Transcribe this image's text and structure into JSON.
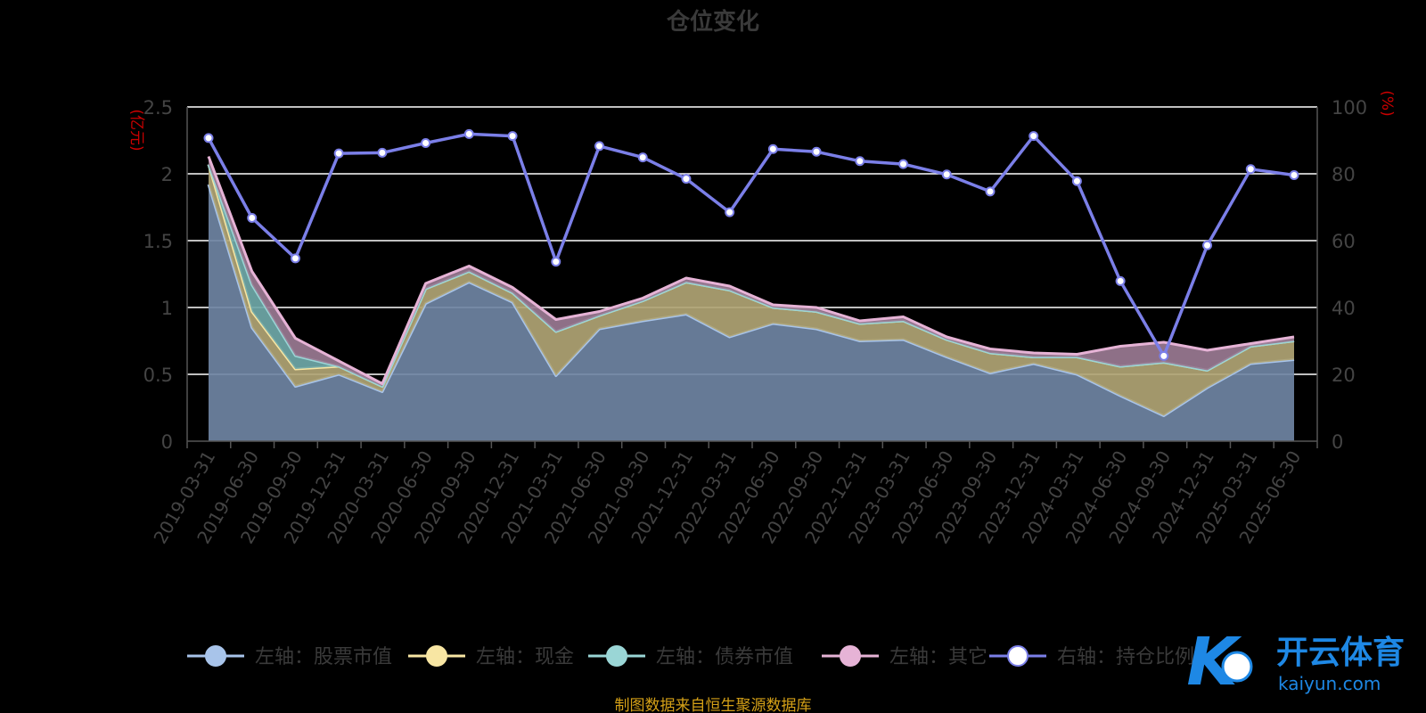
{
  "chart_data": {
    "type": "area",
    "title": "仓位变化",
    "y_left_unit": "(亿元)",
    "y_right_unit": "(%)",
    "ylim_left": [
      0,
      2.5
    ],
    "ylim_right": [
      0,
      100
    ],
    "y_left_ticks": [
      "0",
      "0.5",
      "1",
      "1.5",
      "2",
      "2.5"
    ],
    "y_right_ticks": [
      "0",
      "20",
      "40",
      "60",
      "80",
      "100"
    ],
    "categories": [
      "2019-03-31",
      "2019-06-30",
      "2019-09-30",
      "2019-12-31",
      "2020-03-31",
      "2020-06-30",
      "2020-09-30",
      "2020-12-31",
      "2021-03-31",
      "2021-06-30",
      "2021-09-30",
      "2021-12-31",
      "2022-03-31",
      "2022-06-30",
      "2022-09-30",
      "2022-12-31",
      "2023-03-31",
      "2023-06-30",
      "2023-09-30",
      "2023-12-31",
      "2024-03-31",
      "2024-06-30",
      "2024-09-30",
      "2024-12-31",
      "2025-03-31",
      "2025-06-30"
    ],
    "grid": true,
    "legend_position": "bottom",
    "series": [
      {
        "name": "左轴：股票市值",
        "axis": "left",
        "color": "#a8c4ea",
        "fill": "#6f84a3",
        "values": [
          1.92,
          0.85,
          0.41,
          0.5,
          0.37,
          1.03,
          1.19,
          1.04,
          0.49,
          0.84,
          0.9,
          0.95,
          0.78,
          0.88,
          0.84,
          0.75,
          0.76,
          0.63,
          0.51,
          0.58,
          0.5,
          0.34,
          0.19,
          0.4,
          0.58,
          0.61
        ]
      },
      {
        "name": "左轴：现金",
        "axis": "left",
        "color": "#f8e6a3",
        "fill": "#b0a474",
        "values": [
          0.15,
          0.12,
          0.13,
          0.06,
          0.04,
          0.11,
          0.08,
          0.07,
          0.33,
          0.1,
          0.15,
          0.24,
          0.35,
          0.12,
          0.13,
          0.13,
          0.14,
          0.13,
          0.15,
          0.05,
          0.13,
          0.22,
          0.4,
          0.13,
          0.13,
          0.14
        ]
      },
      {
        "name": "左轴：债券市值",
        "axis": "left",
        "color": "#9ad6d6",
        "fill": "#6fa8a8",
        "values": [
          0,
          0.2,
          0.1,
          0,
          0,
          0,
          0,
          0,
          0,
          0,
          0,
          0,
          0,
          0,
          0,
          0,
          0,
          0,
          0,
          0,
          0,
          0,
          0,
          0,
          0,
          0
        ]
      },
      {
        "name": "左轴：其它",
        "axis": "left",
        "color": "#e6b3d6",
        "fill": "#9a7a92",
        "values": [
          0.06,
          0.1,
          0.13,
          0.04,
          0.02,
          0.04,
          0.04,
          0.04,
          0.09,
          0.03,
          0.02,
          0.03,
          0.03,
          0.02,
          0.03,
          0.02,
          0.03,
          0.02,
          0.03,
          0.03,
          0.02,
          0.15,
          0.15,
          0.15,
          0.02,
          0.03
        ]
      },
      {
        "name": "右轴：持仓比例",
        "axis": "right",
        "color": "#7b7fe8",
        "values": [
          90.7,
          66.8,
          54.7,
          86.1,
          86.3,
          89.2,
          91.9,
          91.3,
          53.7,
          88.3,
          84.9,
          78.5,
          68.5,
          87.4,
          86.6,
          83.8,
          82.9,
          79.8,
          74.7,
          91.3,
          77.8,
          47.9,
          25.5,
          58.6,
          81.4,
          79.6
        ]
      }
    ],
    "source_note": "制图数据来自恒生聚源数据库"
  },
  "watermark": {
    "brand": "开云体育",
    "domain": "kaiyun.com"
  },
  "colors": {
    "background": "#000000",
    "grid": "#ffffff",
    "axis": "#555555",
    "tick_text": "#444444",
    "unit_text": "#cc0000",
    "title": "#3a3a3a",
    "source": "#d4a017",
    "legend_text": "#3a3a3a"
  }
}
